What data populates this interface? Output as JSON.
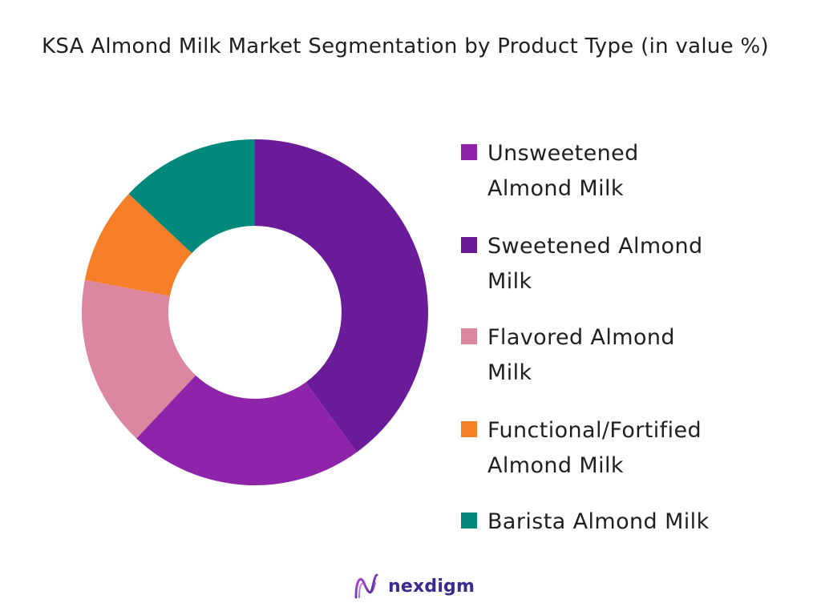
{
  "chart_data": {
    "type": "pie",
    "donut": true,
    "title": "KSA Almond Milk Market Segmentation by Product Type (in value %)",
    "categories": [
      "Sweetened Almond Milk",
      "Unsweetened Almond Milk",
      "Flavored Almond Milk",
      "Functional/Fortified Almond Milk",
      "Barista Almond Milk"
    ],
    "values": [
      40,
      22,
      16,
      9,
      13
    ],
    "colors": [
      "#6a1b9a",
      "#8e24aa",
      "#dc869f",
      "#f57f28",
      "#00897b"
    ],
    "legend": [
      {
        "label": "Unsweetened\nAlmond Milk",
        "color": "#8e24aa"
      },
      {
        "label": "Sweetened Almond\nMilk",
        "color": "#6a1b9a"
      },
      {
        "label": "Flavored Almond\nMilk",
        "color": "#dc869f"
      },
      {
        "label": "Functional/Fortified\nAlmond Milk",
        "color": "#f57f28"
      },
      {
        "label": "Barista Almond Milk",
        "color": "#00897b"
      }
    ],
    "legend_position": "right"
  },
  "brand": {
    "name": "nexdigm",
    "color": "#3b2a8c",
    "icon": "nexdigm-logo-icon"
  }
}
